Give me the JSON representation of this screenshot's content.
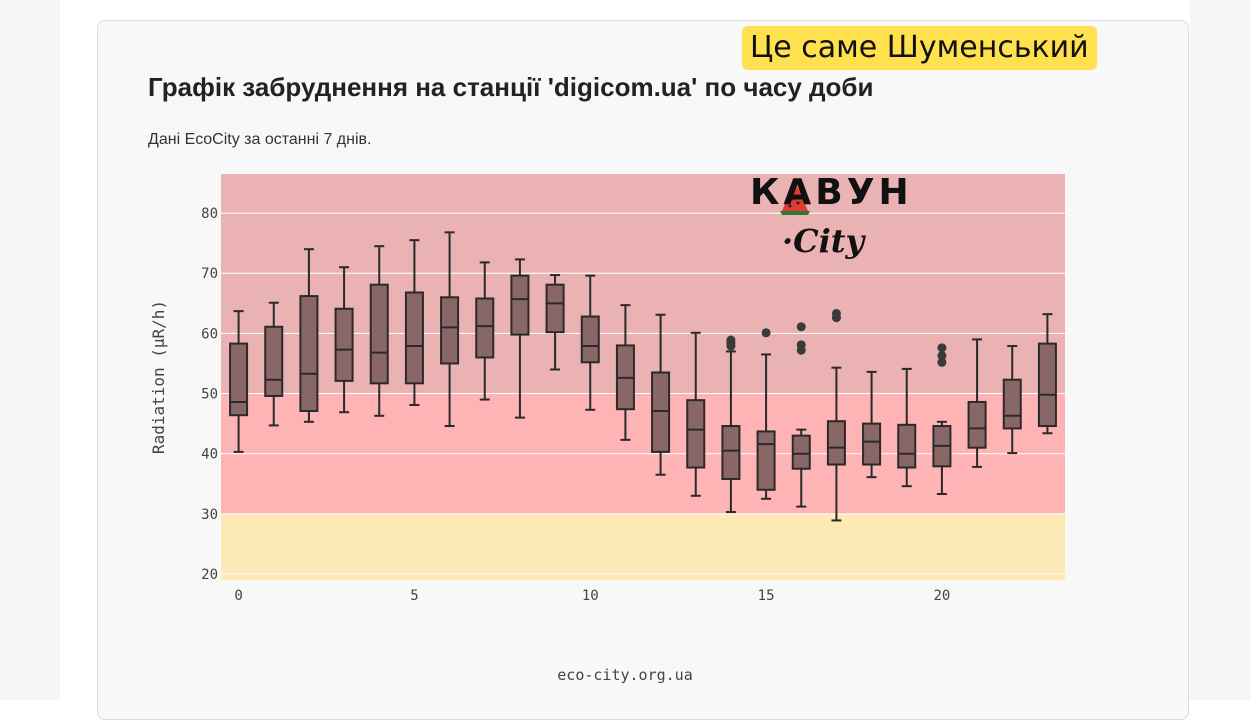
{
  "badge_text": "Це саме Шуменський",
  "logo": {
    "brand": "КАВУН",
    "sub": "·City"
  },
  "footer_text": "eco-city.org.ua",
  "colors": {
    "band_high": "#eab2b2",
    "band_mid": "#feb3b4",
    "band_low": "#fde9b5",
    "box_fill": "#8a6767",
    "box_line": "#2a2a2a",
    "grid": "#ffffff"
  },
  "chart_data": {
    "type": "box",
    "title": "Графік забруднення на станції 'digicom.ua' по часу доби",
    "subtitle": "Дані EcoCity за останні 7 днів.",
    "xlabel": "",
    "ylabel": "Radiation (μR/h)",
    "xlim": [
      -0.5,
      23.5
    ],
    "ylim": [
      19,
      86.5
    ],
    "xticks": [
      0,
      5,
      10,
      15,
      20
    ],
    "yticks": [
      20,
      30,
      40,
      50,
      60,
      70,
      80
    ],
    "grid": true,
    "background_bands": [
      {
        "from": 19,
        "to": 30,
        "color": "#fde9b5"
      },
      {
        "from": 30,
        "to": 50,
        "color": "#feb3b4"
      },
      {
        "from": 50,
        "to": 86.5,
        "color": "#eab2b2"
      }
    ],
    "boxes": [
      {
        "x": 0,
        "min": 40.3,
        "q1": 46.4,
        "median": 48.6,
        "q3": 58.3,
        "max": 63.7,
        "outliers": []
      },
      {
        "x": 1,
        "min": 44.7,
        "q1": 49.6,
        "median": 52.3,
        "q3": 61.1,
        "max": 65.1,
        "outliers": []
      },
      {
        "x": 2,
        "min": 45.3,
        "q1": 47.1,
        "median": 53.3,
        "q3": 66.2,
        "max": 74.0,
        "outliers": []
      },
      {
        "x": 3,
        "min": 46.9,
        "q1": 52.1,
        "median": 57.3,
        "q3": 64.1,
        "max": 71.0,
        "outliers": []
      },
      {
        "x": 4,
        "min": 46.3,
        "q1": 51.7,
        "median": 56.8,
        "q3": 68.1,
        "max": 74.5,
        "outliers": []
      },
      {
        "x": 5,
        "min": 48.1,
        "q1": 51.7,
        "median": 57.9,
        "q3": 66.8,
        "max": 75.5,
        "outliers": []
      },
      {
        "x": 6,
        "min": 44.6,
        "q1": 55.0,
        "median": 61.0,
        "q3": 66.0,
        "max": 76.8,
        "outliers": []
      },
      {
        "x": 7,
        "min": 49.0,
        "q1": 56.0,
        "median": 61.2,
        "q3": 65.8,
        "max": 71.8,
        "outliers": []
      },
      {
        "x": 8,
        "min": 46.0,
        "q1": 59.8,
        "median": 65.7,
        "q3": 69.6,
        "max": 72.3,
        "outliers": []
      },
      {
        "x": 9,
        "min": 54.0,
        "q1": 60.2,
        "median": 65.0,
        "q3": 68.1,
        "max": 69.7,
        "outliers": []
      },
      {
        "x": 10,
        "min": 47.3,
        "q1": 55.2,
        "median": 57.9,
        "q3": 62.8,
        "max": 69.6,
        "outliers": []
      },
      {
        "x": 11,
        "min": 42.3,
        "q1": 47.4,
        "median": 52.6,
        "q3": 58.0,
        "max": 64.7,
        "outliers": []
      },
      {
        "x": 12,
        "min": 36.5,
        "q1": 40.3,
        "median": 47.1,
        "q3": 53.5,
        "max": 63.1,
        "outliers": []
      },
      {
        "x": 13,
        "min": 33.0,
        "q1": 37.7,
        "median": 44.0,
        "q3": 48.9,
        "max": 60.1,
        "outliers": []
      },
      {
        "x": 14,
        "min": 30.3,
        "q1": 35.8,
        "median": 40.5,
        "q3": 44.6,
        "max": 57.0,
        "outliers": [
          57.9,
          58.4,
          58.9
        ]
      },
      {
        "x": 15,
        "min": 32.5,
        "q1": 34.0,
        "median": 41.6,
        "q3": 43.7,
        "max": 56.5,
        "outliers": [
          60.1
        ]
      },
      {
        "x": 16,
        "min": 31.2,
        "q1": 37.5,
        "median": 40.0,
        "q3": 43.0,
        "max": 44.0,
        "outliers": [
          57.2,
          58.1,
          61.1
        ]
      },
      {
        "x": 17,
        "min": 28.9,
        "q1": 38.2,
        "median": 41.0,
        "q3": 45.4,
        "max": 54.3,
        "outliers": [
          62.6,
          63.3
        ]
      },
      {
        "x": 18,
        "min": 36.1,
        "q1": 38.2,
        "median": 42.0,
        "q3": 45.0,
        "max": 53.6,
        "outliers": []
      },
      {
        "x": 19,
        "min": 34.6,
        "q1": 37.7,
        "median": 40.0,
        "q3": 44.8,
        "max": 54.1,
        "outliers": []
      },
      {
        "x": 20,
        "min": 33.3,
        "q1": 37.9,
        "median": 41.3,
        "q3": 44.6,
        "max": 45.3,
        "outliers": [
          55.2,
          56.3,
          57.6
        ]
      },
      {
        "x": 21,
        "min": 37.8,
        "q1": 41.0,
        "median": 44.2,
        "q3": 48.6,
        "max": 59.0,
        "outliers": []
      },
      {
        "x": 22,
        "min": 40.1,
        "q1": 44.2,
        "median": 46.3,
        "q3": 52.3,
        "max": 57.9,
        "outliers": []
      },
      {
        "x": 23,
        "min": 43.4,
        "q1": 44.6,
        "median": 49.8,
        "q3": 58.3,
        "max": 63.2,
        "outliers": []
      }
    ]
  }
}
